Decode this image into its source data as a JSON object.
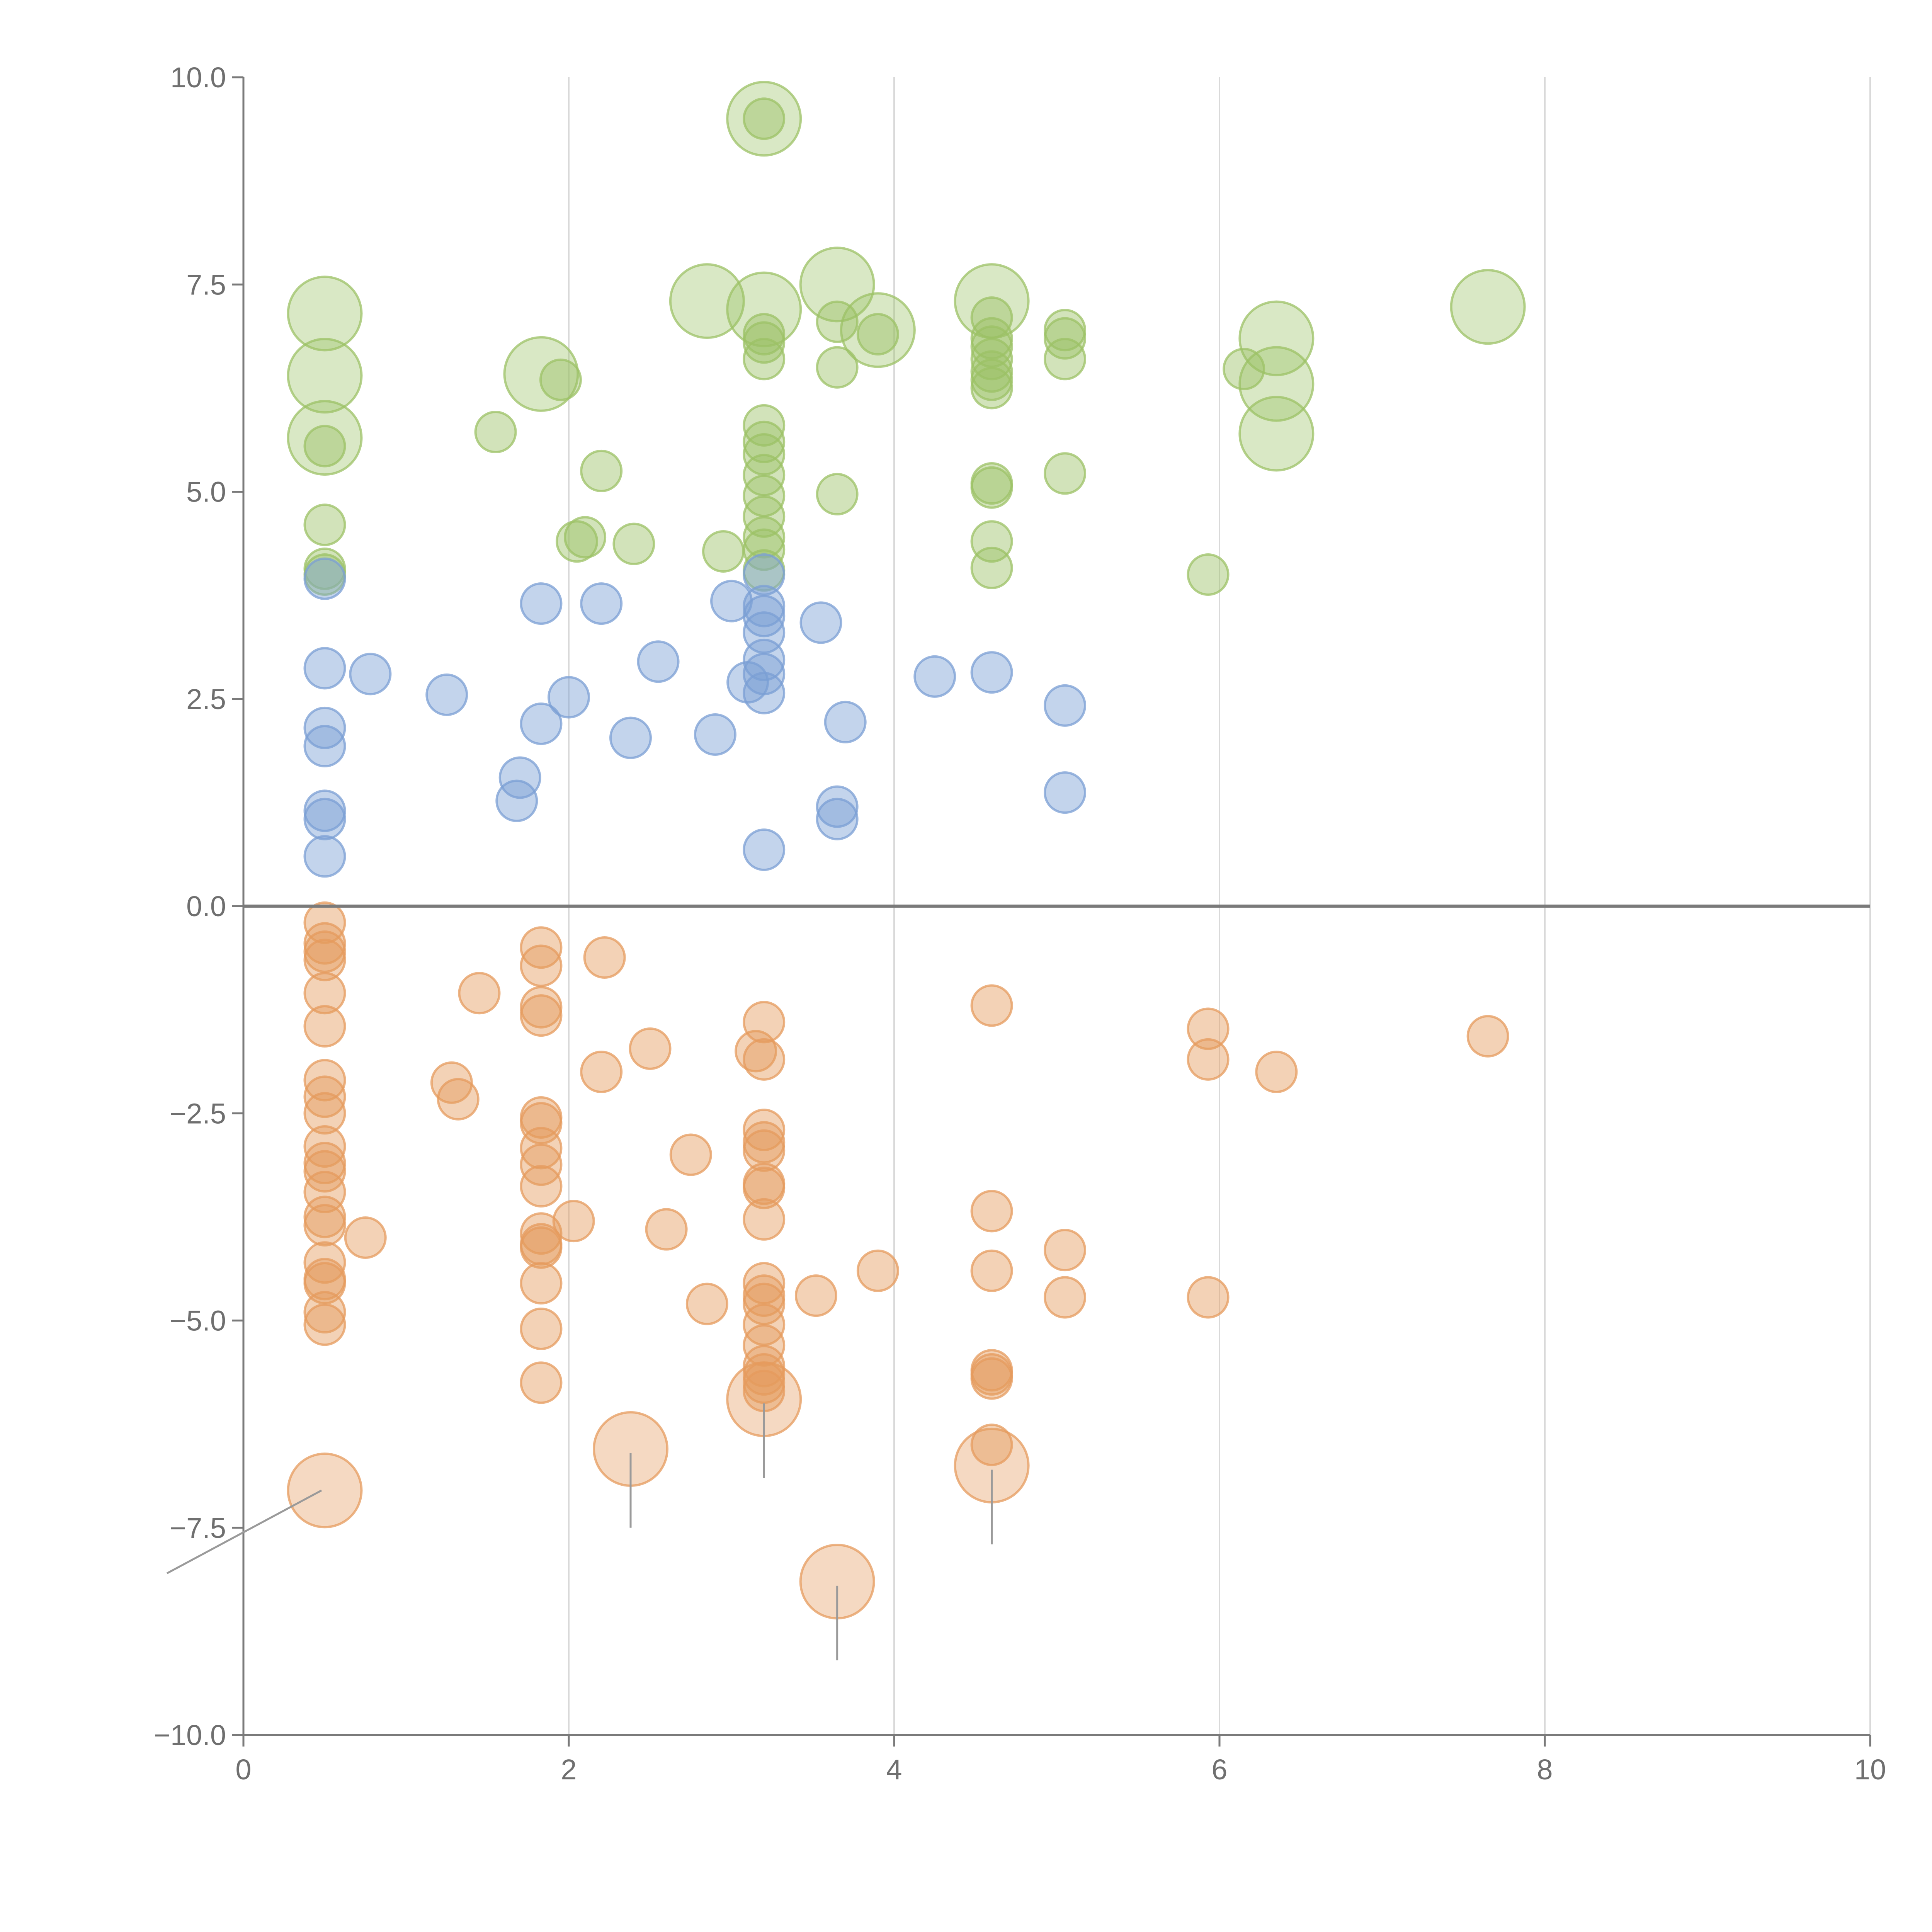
{
  "chart_data": {
    "type": "scatter",
    "title": "",
    "xlabel": "",
    "ylabel": "",
    "xlim": [
      0,
      10
    ],
    "ylim": [
      -10,
      10
    ],
    "x_ticks": [
      "0",
      "2",
      "4",
      "6",
      "8",
      "10"
    ],
    "x_tick_values": [
      0,
      2,
      4,
      6,
      8,
      10
    ],
    "y_ticks": [
      "10.0",
      "7.5",
      "5.0",
      "2.5",
      "0.0",
      "−2.5",
      "−5.0",
      "−7.5",
      "−10.0"
    ],
    "y_tick_values": [
      10,
      7.5,
      5,
      2.5,
      0,
      -2.5,
      -5,
      -7.5,
      -10
    ],
    "grid": "vertical only",
    "zero_line": true,
    "legend": "none",
    "bubble_size_scale": "size 1 = small bubble, size 2 = large highlighted bubble",
    "series": [
      {
        "name": "green",
        "color": "#9cc266",
        "points": [
          [
            0.5,
            4.0,
            1
          ],
          [
            0.5,
            4.07,
            1
          ],
          [
            0.5,
            4.6,
            1
          ],
          [
            0.5,
            5.55,
            1
          ],
          [
            0.5,
            5.65,
            2
          ],
          [
            0.5,
            6.4,
            2
          ],
          [
            0.5,
            7.15,
            2
          ],
          [
            1.55,
            5.72,
            1
          ],
          [
            1.83,
            6.42,
            2
          ],
          [
            1.95,
            6.35,
            1
          ],
          [
            2.05,
            4.4,
            1
          ],
          [
            2.1,
            4.45,
            1
          ],
          [
            2.2,
            5.25,
            1
          ],
          [
            2.4,
            4.37,
            1
          ],
          [
            2.85,
            7.3,
            2
          ],
          [
            2.95,
            4.28,
            1
          ],
          [
            3.2,
            9.5,
            2
          ],
          [
            3.2,
            9.5,
            1
          ],
          [
            3.2,
            7.2,
            2
          ],
          [
            3.2,
            6.9,
            1
          ],
          [
            3.2,
            6.8,
            1
          ],
          [
            3.2,
            6.6,
            1
          ],
          [
            3.2,
            5.8,
            1
          ],
          [
            3.2,
            5.6,
            1
          ],
          [
            3.2,
            5.45,
            1
          ],
          [
            3.2,
            5.2,
            1
          ],
          [
            3.2,
            4.95,
            1
          ],
          [
            3.2,
            4.7,
            1
          ],
          [
            3.2,
            4.45,
            1
          ],
          [
            3.2,
            4.3,
            1
          ],
          [
            3.2,
            4.05,
            1
          ],
          [
            3.65,
            7.5,
            2
          ],
          [
            3.65,
            7.05,
            1
          ],
          [
            3.65,
            6.5,
            1
          ],
          [
            3.65,
            4.97,
            1
          ],
          [
            3.9,
            6.95,
            2
          ],
          [
            3.9,
            6.9,
            1
          ],
          [
            4.6,
            7.3,
            2
          ],
          [
            4.6,
            7.1,
            1
          ],
          [
            4.6,
            6.85,
            1
          ],
          [
            4.6,
            6.75,
            1
          ],
          [
            4.6,
            6.6,
            1
          ],
          [
            4.6,
            6.45,
            1
          ],
          [
            4.6,
            6.35,
            1
          ],
          [
            4.6,
            6.25,
            1
          ],
          [
            4.6,
            5.1,
            1
          ],
          [
            4.6,
            5.05,
            1
          ],
          [
            4.6,
            4.4,
            1
          ],
          [
            4.6,
            4.08,
            1
          ],
          [
            5.05,
            6.95,
            1
          ],
          [
            5.05,
            6.85,
            1
          ],
          [
            5.05,
            6.6,
            1
          ],
          [
            5.05,
            5.22,
            1
          ],
          [
            5.93,
            4.0,
            1
          ],
          [
            6.15,
            6.48,
            1
          ],
          [
            6.35,
            6.85,
            2
          ],
          [
            6.35,
            6.3,
            2
          ],
          [
            6.35,
            5.7,
            2
          ],
          [
            7.65,
            7.23,
            2
          ]
        ]
      },
      {
        "name": "blue",
        "color": "#7b9fd4",
        "points": [
          [
            0.5,
            3.95,
            1
          ],
          [
            0.5,
            2.87,
            1
          ],
          [
            0.5,
            2.15,
            1
          ],
          [
            0.5,
            1.93,
            1
          ],
          [
            0.5,
            1.15,
            1
          ],
          [
            0.5,
            1.05,
            1
          ],
          [
            0.5,
            0.6,
            1
          ],
          [
            0.78,
            2.8,
            1
          ],
          [
            1.25,
            2.55,
            1
          ],
          [
            1.68,
            1.27,
            1
          ],
          [
            1.7,
            1.55,
            1
          ],
          [
            1.83,
            3.65,
            1
          ],
          [
            1.83,
            2.2,
            1
          ],
          [
            2.0,
            2.52,
            1
          ],
          [
            2.2,
            3.65,
            1
          ],
          [
            2.38,
            2.03,
            1
          ],
          [
            2.55,
            2.95,
            1
          ],
          [
            2.9,
            2.07,
            1
          ],
          [
            3.0,
            3.68,
            1
          ],
          [
            3.1,
            2.7,
            1
          ],
          [
            3.2,
            4.0,
            1
          ],
          [
            3.2,
            3.62,
            1
          ],
          [
            3.2,
            3.5,
            1
          ],
          [
            3.2,
            3.3,
            1
          ],
          [
            3.2,
            2.97,
            1
          ],
          [
            3.2,
            2.8,
            1
          ],
          [
            3.2,
            2.57,
            1
          ],
          [
            3.2,
            0.68,
            1
          ],
          [
            3.55,
            3.42,
            1
          ],
          [
            3.65,
            1.2,
            1
          ],
          [
            3.65,
            1.05,
            1
          ],
          [
            3.7,
            2.22,
            1
          ],
          [
            4.25,
            2.77,
            1
          ],
          [
            4.6,
            2.82,
            1
          ],
          [
            5.05,
            2.42,
            1
          ],
          [
            5.05,
            1.37,
            1
          ]
        ]
      },
      {
        "name": "orange",
        "color": "#e59b5e",
        "points": [
          [
            0.5,
            -0.2,
            1
          ],
          [
            0.5,
            -0.45,
            1
          ],
          [
            0.5,
            -0.55,
            1
          ],
          [
            0.5,
            -0.65,
            1
          ],
          [
            0.5,
            -1.05,
            1
          ],
          [
            0.5,
            -1.45,
            1
          ],
          [
            0.5,
            -2.1,
            1
          ],
          [
            0.5,
            -2.3,
            1
          ],
          [
            0.5,
            -2.5,
            1
          ],
          [
            0.5,
            -2.9,
            1
          ],
          [
            0.5,
            -3.1,
            1
          ],
          [
            0.5,
            -3.2,
            1
          ],
          [
            0.5,
            -3.45,
            1
          ],
          [
            0.5,
            -3.75,
            1
          ],
          [
            0.5,
            -3.85,
            1
          ],
          [
            0.5,
            -4.3,
            1
          ],
          [
            0.5,
            -4.5,
            1
          ],
          [
            0.5,
            -4.55,
            1
          ],
          [
            0.5,
            -4.9,
            1
          ],
          [
            0.5,
            -5.05,
            1
          ],
          [
            0.5,
            -7.05,
            2
          ],
          [
            0.75,
            -4.0,
            1
          ],
          [
            1.28,
            -2.13,
            1
          ],
          [
            1.32,
            -2.33,
            1
          ],
          [
            1.45,
            -1.05,
            1
          ],
          [
            1.83,
            -0.5,
            1
          ],
          [
            1.83,
            -0.72,
            1
          ],
          [
            1.83,
            -1.22,
            1
          ],
          [
            1.83,
            -1.32,
            1
          ],
          [
            1.83,
            -2.55,
            1
          ],
          [
            1.83,
            -2.62,
            1
          ],
          [
            1.83,
            -2.92,
            1
          ],
          [
            1.83,
            -3.12,
            1
          ],
          [
            1.83,
            -3.38,
            1
          ],
          [
            1.83,
            -3.95,
            1
          ],
          [
            1.83,
            -4.08,
            1
          ],
          [
            1.83,
            -4.12,
            1
          ],
          [
            1.83,
            -4.55,
            1
          ],
          [
            1.83,
            -5.1,
            1
          ],
          [
            1.83,
            -5.75,
            1
          ],
          [
            2.03,
            -3.8,
            1
          ],
          [
            2.2,
            -2.0,
            1
          ],
          [
            2.22,
            -0.62,
            1
          ],
          [
            2.38,
            -6.55,
            2
          ],
          [
            2.5,
            -1.72,
            1
          ],
          [
            2.6,
            -3.9,
            1
          ],
          [
            2.75,
            -3.0,
            1
          ],
          [
            2.85,
            -4.8,
            1
          ],
          [
            3.15,
            -1.75,
            1
          ],
          [
            3.2,
            -1.4,
            1
          ],
          [
            3.2,
            -1.85,
            1
          ],
          [
            3.2,
            -2.7,
            1
          ],
          [
            3.2,
            -2.85,
            1
          ],
          [
            3.2,
            -2.95,
            1
          ],
          [
            3.2,
            -3.35,
            1
          ],
          [
            3.2,
            -3.4,
            1
          ],
          [
            3.2,
            -3.78,
            1
          ],
          [
            3.2,
            -4.55,
            1
          ],
          [
            3.2,
            -4.7,
            1
          ],
          [
            3.2,
            -4.8,
            1
          ],
          [
            3.2,
            -5.05,
            1
          ],
          [
            3.2,
            -5.3,
            1
          ],
          [
            3.2,
            -5.55,
            1
          ],
          [
            3.2,
            -5.65,
            1
          ],
          [
            3.2,
            -5.75,
            1
          ],
          [
            3.2,
            -5.85,
            1
          ],
          [
            3.2,
            -5.95,
            2
          ],
          [
            3.52,
            -4.7,
            1
          ],
          [
            3.65,
            -8.15,
            2
          ],
          [
            3.9,
            -4.4,
            1
          ],
          [
            4.6,
            -1.2,
            1
          ],
          [
            4.6,
            -3.68,
            1
          ],
          [
            4.6,
            -4.4,
            1
          ],
          [
            4.6,
            -5.6,
            1
          ],
          [
            4.6,
            -5.65,
            1
          ],
          [
            4.6,
            -5.7,
            1
          ],
          [
            4.6,
            -6.5,
            1
          ],
          [
            4.6,
            -6.75,
            2
          ],
          [
            5.05,
            -4.15,
            1
          ],
          [
            5.05,
            -4.72,
            1
          ],
          [
            5.93,
            -1.48,
            1
          ],
          [
            5.93,
            -1.85,
            1
          ],
          [
            5.93,
            -4.72,
            1
          ],
          [
            6.35,
            -2.0,
            1
          ],
          [
            7.65,
            -1.57,
            1
          ]
        ]
      }
    ],
    "annotation_leaders": [
      [
        [
          0.48,
          -7.05
        ],
        [
          -0.47,
          -8.05
        ]
      ],
      [
        [
          2.38,
          -6.6
        ],
        [
          2.38,
          -7.5
        ]
      ],
      [
        [
          3.2,
          -6.0
        ],
        [
          3.2,
          -6.9
        ]
      ],
      [
        [
          3.65,
          -8.2
        ],
        [
          3.65,
          -9.1
        ]
      ],
      [
        [
          4.6,
          -6.8
        ],
        [
          4.6,
          -7.7
        ]
      ]
    ]
  }
}
